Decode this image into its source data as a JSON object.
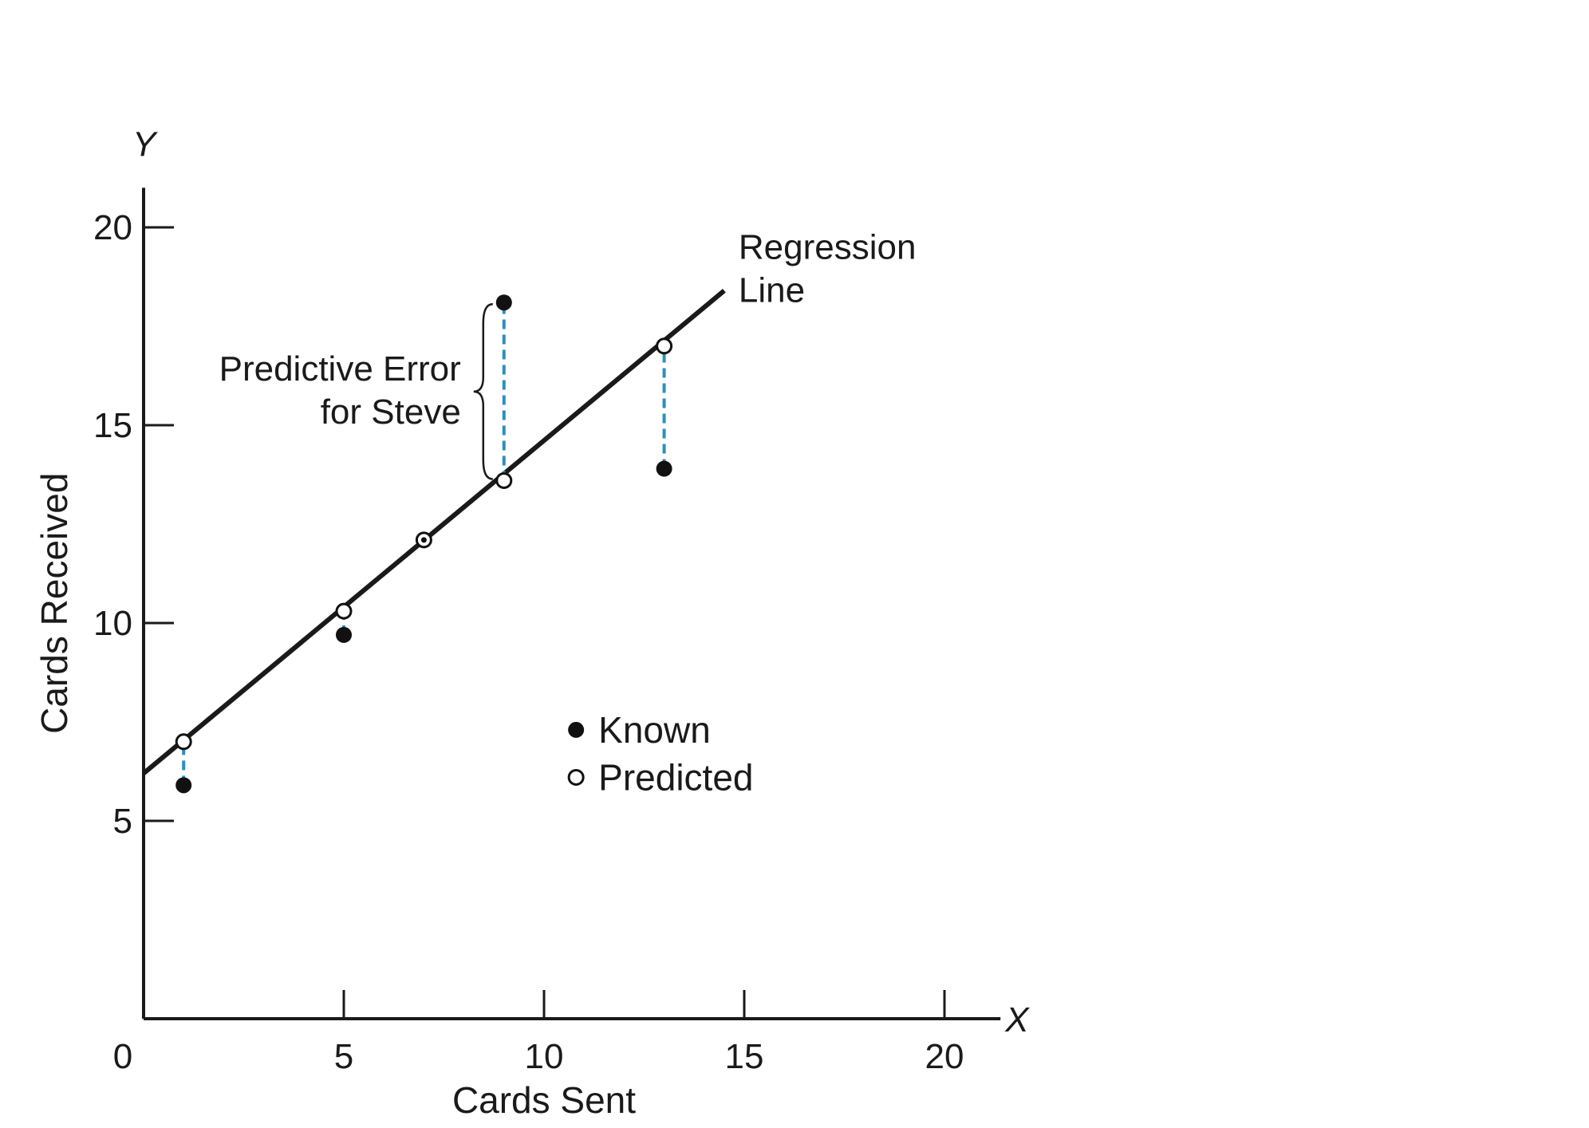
{
  "chart_data": {
    "type": "scatter",
    "title": "",
    "xlabel": "Cards Sent",
    "ylabel": "Cards Received",
    "x_axis_letter": "X",
    "y_axis_letter": "Y",
    "xlim": [
      0,
      21
    ],
    "ylim": [
      0,
      21
    ],
    "x_ticks": [
      0,
      5,
      10,
      15,
      20
    ],
    "y_ticks": [
      5,
      10,
      15,
      20
    ],
    "grid": false,
    "regression_line": {
      "label_line1": "Regression",
      "label_line2": "Line",
      "x": [
        0,
        14.5
      ],
      "y": [
        6.2,
        18.4
      ]
    },
    "series": [
      {
        "name": "Known",
        "marker": "filled",
        "points": [
          [
            1,
            5.9
          ],
          [
            5,
            9.7
          ],
          [
            7,
            12.1
          ],
          [
            9,
            18.1
          ],
          [
            13,
            13.9
          ]
        ]
      },
      {
        "name": "Predicted",
        "marker": "open",
        "points": [
          [
            1,
            7.0
          ],
          [
            5,
            10.3
          ],
          [
            7,
            12.1
          ],
          [
            9,
            13.6
          ],
          [
            13,
            17.0
          ]
        ]
      }
    ],
    "error_lines": [
      {
        "x": 1,
        "from": 5.9,
        "to": 7.0
      },
      {
        "x": 5,
        "from": 9.7,
        "to": 10.3
      },
      {
        "x": 9,
        "from": 13.6,
        "to": 18.1
      },
      {
        "x": 13,
        "from": 13.9,
        "to": 17.0
      }
    ],
    "annotation": {
      "line1": "Predictive Error",
      "line2": "for Steve",
      "x": 9,
      "y_from": 13.6,
      "y_to": 18.1
    },
    "legend": {
      "position": "center",
      "known_label": "Known",
      "predicted_label": "Predicted"
    },
    "colors": {
      "axis": "#1a1a1a",
      "line": "#1a1a1a",
      "error": "#2a8fc0",
      "marker": "#111111"
    }
  }
}
